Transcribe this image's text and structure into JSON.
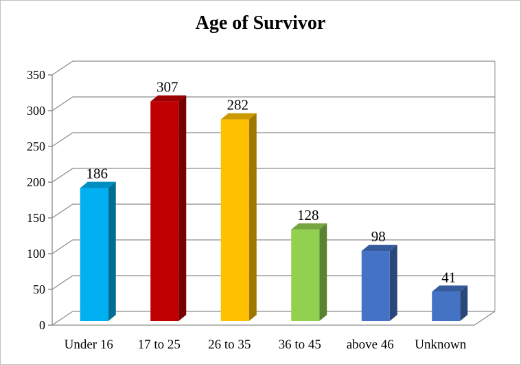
{
  "chart_data": {
    "type": "bar",
    "title": "Age of Survivor",
    "xlabel": "",
    "ylabel": "",
    "categories": [
      "Under 16",
      "17 to 25",
      "26 to 35",
      "36 to 45",
      "above 46",
      "Unknown"
    ],
    "values": [
      186,
      307,
      282,
      128,
      98,
      41
    ],
    "data_labels": [
      "186",
      "307",
      "282",
      "128",
      "98",
      "41"
    ],
    "ylim": [
      0,
      350
    ],
    "yticks": [
      "0",
      "50",
      "100",
      "150",
      "200",
      "250",
      "300",
      "350"
    ],
    "grid": true,
    "legend": "none",
    "three_d": true
  },
  "colors": {
    "bars": [
      "#00b0f0",
      "#c00000",
      "#ffc000",
      "#92d050",
      "#4472c4",
      "#4472c4"
    ],
    "grid": "#8c8c8c"
  }
}
